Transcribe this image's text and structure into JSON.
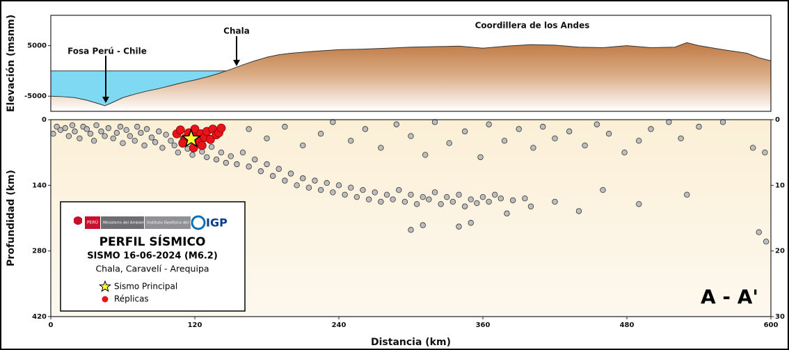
{
  "chart_data": [
    {
      "type": "area",
      "ylabel": "Elevación (msnm)",
      "x": [
        0,
        10,
        20,
        30,
        40,
        45,
        50,
        60,
        70,
        80,
        90,
        100,
        110,
        120,
        130,
        140,
        150,
        160,
        170,
        180,
        190,
        200,
        220,
        240,
        260,
        280,
        300,
        320,
        340,
        360,
        380,
        400,
        420,
        440,
        460,
        480,
        500,
        520,
        530,
        540,
        560,
        580,
        590,
        600
      ],
      "values": [
        -5000,
        -5100,
        -5300,
        -5800,
        -6500,
        -6900,
        -6400,
        -5300,
        -4600,
        -4000,
        -3500,
        -2900,
        -2300,
        -1800,
        -1200,
        -500,
        300,
        1200,
        2000,
        2700,
        3200,
        3500,
        3900,
        4200,
        4300,
        4500,
        4700,
        4800,
        4900,
        4500,
        4900,
        5200,
        5100,
        4700,
        4600,
        5000,
        4600,
        4700,
        5600,
        5000,
        4200,
        3500,
        2600,
        2000
      ],
      "color": "#c98a5b",
      "sea_color": "#7fd9f3",
      "xlim": [
        0,
        600
      ],
      "ylim": [
        -8000,
        11000
      ],
      "yticks": [
        -5000,
        5000
      ],
      "annotations": [
        "Fosa Perú - Chile",
        "Chala",
        "Coordillera de los Andes"
      ]
    },
    {
      "type": "scatter",
      "ylabel": "Profundidad (km)",
      "xlabel": "Distancia (km)",
      "xlim": [
        0,
        600
      ],
      "xticks": [
        0,
        120,
        240,
        360,
        480,
        600
      ],
      "ylim": [
        420,
        0
      ],
      "yticks": [
        0,
        140,
        280,
        420
      ],
      "y2lim": [
        30,
        0
      ],
      "y2ticks": [
        0,
        10,
        20,
        30
      ],
      "series": [
        {
          "color": "#bdbdbd",
          "x": [
            2,
            5,
            8,
            12,
            15,
            18,
            20,
            24,
            27,
            30,
            33,
            36,
            38,
            42,
            45,
            48,
            52,
            55,
            58,
            60,
            63,
            66,
            70,
            72,
            75,
            78,
            80,
            84,
            87,
            90,
            93,
            96,
            100,
            103,
            106,
            110,
            114,
            118,
            122,
            126,
            130,
            134,
            138,
            142,
            146,
            150,
            155,
            160,
            165,
            170,
            175,
            180,
            185,
            190,
            195,
            200,
            205,
            210,
            215,
            220,
            225,
            230,
            235,
            240,
            245,
            250,
            255,
            260,
            265,
            270,
            275,
            280,
            285,
            290,
            295,
            300,
            305,
            310,
            315,
            320,
            325,
            330,
            335,
            340,
            345,
            350,
            355,
            360,
            365,
            370,
            375,
            385,
            395,
            165,
            180,
            195,
            210,
            225,
            235,
            250,
            262,
            275,
            288,
            300,
            312,
            320,
            332,
            345,
            358,
            365,
            378,
            390,
            402,
            410,
            420,
            432,
            445,
            455,
            465,
            478,
            490,
            500,
            515,
            525,
            540,
            560,
            585,
            595,
            380,
            400,
            420,
            440,
            460,
            490,
            530,
            590,
            596,
            300,
            310,
            340,
            350
          ],
          "values": [
            30,
            15,
            22,
            18,
            35,
            12,
            25,
            40,
            15,
            20,
            30,
            45,
            12,
            25,
            35,
            18,
            40,
            28,
            15,
            50,
            22,
            35,
            45,
            15,
            28,
            55,
            20,
            38,
            48,
            25,
            60,
            32,
            45,
            55,
            70,
            40,
            62,
            75,
            50,
            68,
            80,
            58,
            85,
            70,
            92,
            78,
            95,
            70,
            100,
            85,
            110,
            95,
            120,
            105,
            130,
            115,
            140,
            125,
            145,
            130,
            150,
            135,
            155,
            140,
            160,
            145,
            165,
            150,
            170,
            155,
            175,
            160,
            170,
            150,
            175,
            160,
            180,
            165,
            170,
            155,
            180,
            165,
            175,
            160,
            185,
            170,
            178,
            165,
            175,
            160,
            168,
            172,
            168,
            20,
            40,
            15,
            55,
            30,
            5,
            45,
            20,
            60,
            10,
            35,
            75,
            5,
            50,
            25,
            80,
            10,
            45,
            20,
            60,
            15,
            40,
            25,
            55,
            10,
            30,
            70,
            45,
            20,
            5,
            40,
            15,
            5,
            60,
            70,
            200,
            185,
            175,
            195,
            150,
            180,
            160,
            240,
            260,
            235,
            225,
            228,
            220
          ]
        },
        {
          "name": "Réplicas",
          "color": "#e8141c",
          "x": [
            105,
            108,
            112,
            115,
            118,
            120,
            122,
            125,
            128,
            130,
            133,
            135,
            138,
            140,
            142,
            110,
            126,
            119
          ],
          "values": [
            30,
            22,
            40,
            28,
            35,
            20,
            45,
            30,
            38,
            25,
            42,
            20,
            32,
            28,
            18,
            50,
            55,
            60
          ]
        },
        {
          "name": "Sismo Principal",
          "color": "#ffff33",
          "marker": "star",
          "x": [
            117
          ],
          "values": [
            41
          ]
        }
      ],
      "legend_order": [
        2,
        1
      ],
      "logos": [
        "PERÚ",
        "Ministerio del Ambiente",
        "Instituto Geofísico del Perú",
        "IGP"
      ],
      "title": "PERFIL SÍSMICO",
      "subtitle": "SISMO 16-06-2024 (M6.2)",
      "location": "Chala, Caravelí - Arequipa",
      "panel_label": "A - A'"
    }
  ]
}
